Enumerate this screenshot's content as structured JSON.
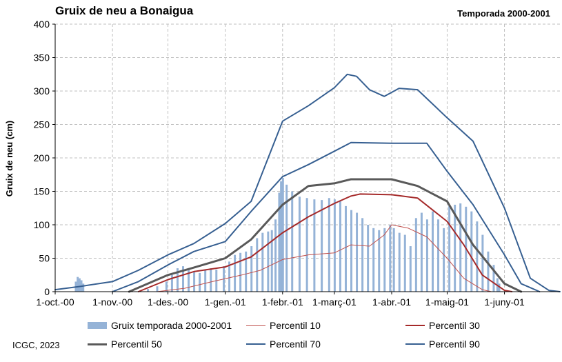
{
  "header": {
    "title": "Gruix de neu a Bonaigua",
    "season": "Temporada 2000-2001"
  },
  "footer": {
    "credit": "ICGC, 2023"
  },
  "colors": {
    "bars": "#95B3D7",
    "p10": "#C0504D",
    "p30": "#A52A2A",
    "p50": "#595959",
    "p70": "#365F91",
    "p90": "#365F91",
    "grid": "#BFBFBF"
  },
  "chart_data": {
    "type": "bar",
    "title": "Gruix de neu a Bonaigua",
    "subtitle": "Temporada 2000-2001",
    "ylabel": "Gruix de neu (cm)",
    "xlabel": "",
    "ylim": [
      0,
      400
    ],
    "yticks": [
      "0",
      "50",
      "100",
      "150",
      "200",
      "250",
      "300",
      "350",
      "400"
    ],
    "xlim": [
      "2000-10-01",
      "2001-07-01"
    ],
    "xticks": [
      {
        "date": "2000-10-01",
        "label": "1-oct.-00"
      },
      {
        "date": "2000-11-01",
        "label": "1-nov.-00"
      },
      {
        "date": "2000-12-01",
        "label": "1-des.-00"
      },
      {
        "date": "2001-01-01",
        "label": "1-gen.-01"
      },
      {
        "date": "2001-02-01",
        "label": "1-febr.-01"
      },
      {
        "date": "2001-03-01",
        "label": "1-març-01"
      },
      {
        "date": "2001-04-01",
        "label": "1-abr.-01"
      },
      {
        "date": "2001-05-01",
        "label": "1-maig-01"
      },
      {
        "date": "2001-06-01",
        "label": "1-juny-01"
      }
    ],
    "grid": true,
    "legend_position": "bottom",
    "bars": {
      "name": "Gruix temporada 2000-2001",
      "points": [
        [
          "2000-10-12",
          15
        ],
        [
          "2000-10-13",
          22
        ],
        [
          "2000-10-14",
          20
        ],
        [
          "2000-10-15",
          17
        ],
        [
          "2000-10-16",
          12
        ],
        [
          "2000-11-20",
          4
        ],
        [
          "2000-11-25",
          8
        ],
        [
          "2000-11-30",
          15
        ],
        [
          "2000-12-03",
          25
        ],
        [
          "2000-12-06",
          35
        ],
        [
          "2000-12-09",
          38
        ],
        [
          "2000-12-12",
          33
        ],
        [
          "2000-12-15",
          30
        ],
        [
          "2000-12-18",
          28
        ],
        [
          "2000-12-21",
          32
        ],
        [
          "2000-12-24",
          35
        ],
        [
          "2000-12-27",
          33
        ],
        [
          "2000-12-31",
          38
        ],
        [
          "2001-01-03",
          45
        ],
        [
          "2001-01-06",
          55
        ],
        [
          "2001-01-09",
          58
        ],
        [
          "2001-01-12",
          60
        ],
        [
          "2001-01-15",
          68
        ],
        [
          "2001-01-18",
          80
        ],
        [
          "2001-01-21",
          88
        ],
        [
          "2001-01-24",
          90
        ],
        [
          "2001-01-26",
          92
        ],
        [
          "2001-01-28",
          108
        ],
        [
          "2001-01-30",
          148
        ],
        [
          "2001-01-31",
          165
        ],
        [
          "2001-02-01",
          170
        ],
        [
          "2001-02-03",
          160
        ],
        [
          "2001-02-06",
          150
        ],
        [
          "2001-02-10",
          142
        ],
        [
          "2001-02-14",
          140
        ],
        [
          "2001-02-18",
          138
        ],
        [
          "2001-02-22",
          137
        ],
        [
          "2001-02-26",
          140
        ],
        [
          "2001-03-01",
          138
        ],
        [
          "2001-03-04",
          135
        ],
        [
          "2001-03-07",
          128
        ],
        [
          "2001-03-10",
          122
        ],
        [
          "2001-03-13",
          118
        ],
        [
          "2001-03-16",
          110
        ],
        [
          "2001-03-19",
          100
        ],
        [
          "2001-03-22",
          95
        ],
        [
          "2001-03-25",
          92
        ],
        [
          "2001-03-28",
          95
        ],
        [
          "2001-03-31",
          100
        ],
        [
          "2001-04-02",
          95
        ],
        [
          "2001-04-05",
          88
        ],
        [
          "2001-04-08",
          85
        ],
        [
          "2001-04-11",
          68
        ],
        [
          "2001-04-14",
          110
        ],
        [
          "2001-04-17",
          118
        ],
        [
          "2001-04-20",
          108
        ],
        [
          "2001-04-23",
          120
        ],
        [
          "2001-04-26",
          108
        ],
        [
          "2001-04-29",
          95
        ],
        [
          "2001-05-02",
          128
        ],
        [
          "2001-05-05",
          130
        ],
        [
          "2001-05-08",
          132
        ],
        [
          "2001-05-11",
          127
        ],
        [
          "2001-05-14",
          120
        ],
        [
          "2001-05-17",
          105
        ],
        [
          "2001-05-20",
          85
        ],
        [
          "2001-05-23",
          60
        ],
        [
          "2001-05-26",
          40
        ],
        [
          "2001-05-28",
          20
        ],
        [
          "2001-05-29",
          12
        ]
      ]
    },
    "series": [
      {
        "name": "Percentil 10",
        "key": "p10",
        "width": 1,
        "points": [
          [
            "2000-11-25",
            0
          ],
          [
            "2000-12-10",
            5
          ],
          [
            "2000-12-25",
            15
          ],
          [
            "2001-01-10",
            25
          ],
          [
            "2001-01-20",
            32
          ],
          [
            "2001-02-01",
            48
          ],
          [
            "2001-02-15",
            55
          ],
          [
            "2001-03-01",
            58
          ],
          [
            "2001-03-10",
            70
          ],
          [
            "2001-03-20",
            68
          ],
          [
            "2001-03-28",
            85
          ],
          [
            "2001-04-01",
            100
          ],
          [
            "2001-04-10",
            95
          ],
          [
            "2001-04-20",
            82
          ],
          [
            "2001-05-01",
            50
          ],
          [
            "2001-05-10",
            20
          ],
          [
            "2001-05-20",
            3
          ],
          [
            "2001-05-25",
            0
          ]
        ]
      },
      {
        "name": "Percentil 30",
        "key": "p30",
        "width": 2,
        "points": [
          [
            "2000-11-15",
            0
          ],
          [
            "2000-12-01",
            18
          ],
          [
            "2000-12-15",
            30
          ],
          [
            "2001-01-01",
            37
          ],
          [
            "2001-01-15",
            52
          ],
          [
            "2001-02-01",
            88
          ],
          [
            "2001-02-15",
            112
          ],
          [
            "2001-03-01",
            132
          ],
          [
            "2001-03-10",
            143
          ],
          [
            "2001-03-15",
            146
          ],
          [
            "2001-04-01",
            145
          ],
          [
            "2001-04-15",
            140
          ],
          [
            "2001-05-01",
            105
          ],
          [
            "2001-05-10",
            70
          ],
          [
            "2001-05-20",
            25
          ],
          [
            "2001-06-01",
            2
          ],
          [
            "2001-06-05",
            0
          ]
        ]
      },
      {
        "name": "Percentil 50",
        "key": "p50",
        "width": 3,
        "points": [
          [
            "2000-11-10",
            0
          ],
          [
            "2000-12-01",
            25
          ],
          [
            "2000-12-15",
            36
          ],
          [
            "2001-01-01",
            50
          ],
          [
            "2001-01-15",
            78
          ],
          [
            "2001-02-01",
            130
          ],
          [
            "2001-02-15",
            158
          ],
          [
            "2001-03-01",
            162
          ],
          [
            "2001-03-10",
            168
          ],
          [
            "2001-04-01",
            168
          ],
          [
            "2001-04-15",
            158
          ],
          [
            "2001-05-01",
            135
          ],
          [
            "2001-05-15",
            70
          ],
          [
            "2001-06-01",
            12
          ],
          [
            "2001-06-10",
            0
          ]
        ]
      },
      {
        "name": "Percentil 70",
        "key": "p70",
        "width": 2,
        "points": [
          [
            "2000-11-01",
            0
          ],
          [
            "2000-11-15",
            15
          ],
          [
            "2000-12-01",
            40
          ],
          [
            "2000-12-15",
            60
          ],
          [
            "2001-01-01",
            75
          ],
          [
            "2001-01-15",
            120
          ],
          [
            "2001-02-01",
            172
          ],
          [
            "2001-02-15",
            190
          ],
          [
            "2001-03-01",
            210
          ],
          [
            "2001-03-10",
            223
          ],
          [
            "2001-04-01",
            222
          ],
          [
            "2001-04-20",
            222
          ],
          [
            "2001-05-01",
            180
          ],
          [
            "2001-05-15",
            130
          ],
          [
            "2001-06-01",
            55
          ],
          [
            "2001-06-10",
            12
          ],
          [
            "2001-06-20",
            0
          ]
        ]
      },
      {
        "name": "Percentil 90",
        "key": "p90",
        "width": 2,
        "points": [
          [
            "2000-10-01",
            3
          ],
          [
            "2000-10-15",
            8
          ],
          [
            "2000-11-01",
            15
          ],
          [
            "2000-11-15",
            32
          ],
          [
            "2000-12-01",
            55
          ],
          [
            "2000-12-15",
            72
          ],
          [
            "2001-01-01",
            102
          ],
          [
            "2001-01-15",
            135
          ],
          [
            "2001-02-01",
            255
          ],
          [
            "2001-02-15",
            278
          ],
          [
            "2001-03-01",
            305
          ],
          [
            "2001-03-08",
            325
          ],
          [
            "2001-03-13",
            322
          ],
          [
            "2001-03-20",
            302
          ],
          [
            "2001-03-28",
            292
          ],
          [
            "2001-04-05",
            304
          ],
          [
            "2001-04-15",
            302
          ],
          [
            "2001-05-01",
            260
          ],
          [
            "2001-05-15",
            225
          ],
          [
            "2001-06-01",
            125
          ],
          [
            "2001-06-15",
            20
          ],
          [
            "2001-06-25",
            2
          ],
          [
            "2001-07-01",
            0
          ]
        ]
      }
    ],
    "legend": [
      {
        "label": "Gruix temporada 2000-2001",
        "kind": "bar",
        "key": "bars"
      },
      {
        "label": "Percentil 10",
        "kind": "line",
        "key": "p10",
        "width": 1
      },
      {
        "label": "Percentil 30",
        "kind": "line",
        "key": "p30",
        "width": 2
      },
      {
        "label": "Percentil 50",
        "kind": "line",
        "key": "p50",
        "width": 3
      },
      {
        "label": "Percentil 70",
        "kind": "line",
        "key": "p70",
        "width": 2
      },
      {
        "label": "Percentil 90",
        "kind": "line",
        "key": "p90",
        "width": 2
      }
    ]
  }
}
